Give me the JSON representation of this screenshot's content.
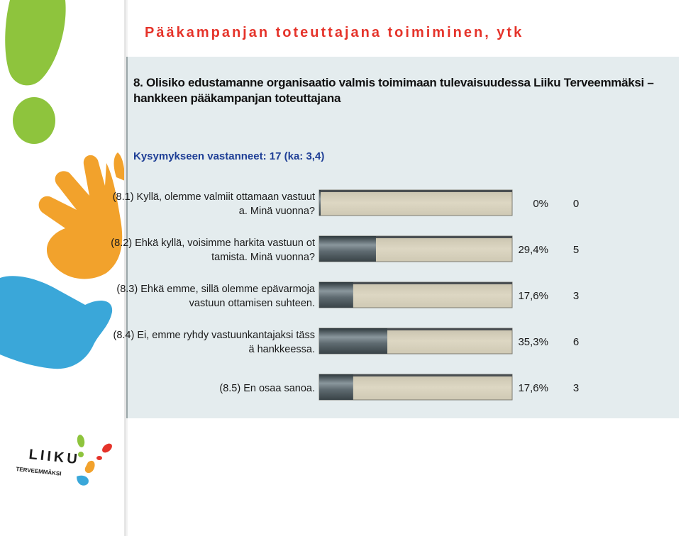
{
  "slide": {
    "title": "Pääkampanjan toteuttajana toimiminen, ytk"
  },
  "logo": {
    "word": "LIIKU",
    "sub": "TERVEEMMÄKSI"
  },
  "colors": {
    "title_red": "#e5332a",
    "panel_bg": "#e4ecee",
    "bar_track": "#d8d2bd",
    "bar_fill": "#5e6a70",
    "respondents_blue": "#1f3f96"
  },
  "chart_data": {
    "type": "bar",
    "orientation": "horizontal",
    "title": "8. Olisiko edustamanne organisaatio valmis toimimaan tulevaisuudessa Liiku Terveemmäksi – hankkeen pääkampanjan toteuttajana",
    "subtitle": "Kysymykseen vastanneet: 17 (ka: 3,4)",
    "max_percent": 100,
    "categories": [
      {
        "label_lines": [
          "(8.1) Kyllä, olemme valmiit ottamaan vastuut",
          "a. Minä vuonna?"
        ],
        "percent": 0,
        "percent_label": "0%",
        "count": "0"
      },
      {
        "label_lines": [
          "(8.2) Ehkä kyllä, voisimme harkita vastuun ot",
          "tamista. Minä vuonna?"
        ],
        "percent": 29.4,
        "percent_label": "29,4%",
        "count": "5"
      },
      {
        "label_lines": [
          "(8.3) Ehkä emme, sillä olemme epävarmoja",
          "vastuun ottamisen suhteen."
        ],
        "percent": 17.6,
        "percent_label": "17,6%",
        "count": "3"
      },
      {
        "label_lines": [
          "(8.4) Ei, emme ryhdy vastuunkantajaksi täss",
          "ä hankkeessa."
        ],
        "percent": 35.3,
        "percent_label": "35,3%",
        "count": "6"
      },
      {
        "label_lines": [
          "(8.5) En osaa sanoa."
        ],
        "percent": 17.6,
        "percent_label": "17,6%",
        "count": "3"
      }
    ]
  }
}
